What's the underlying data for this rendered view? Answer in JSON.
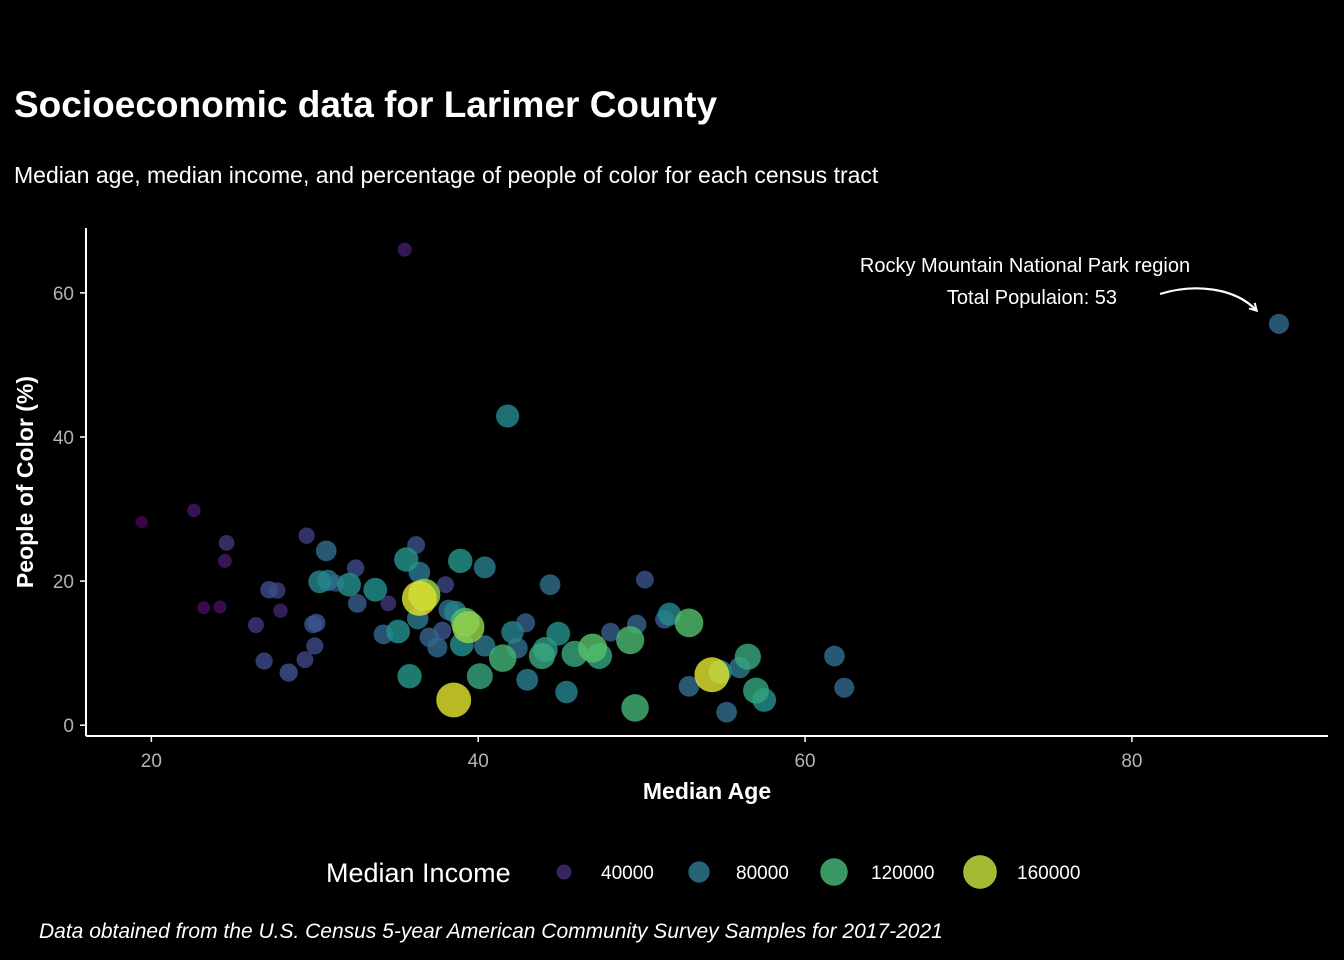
{
  "header": {
    "title": "Socioeconomic data for Larimer County",
    "subtitle": "Median age, median income, and percentage of people of color for each census tract"
  },
  "caption": "Data obtained from the U.S. Census 5-year American Community Survey Samples for 2017-2021",
  "chart_data": {
    "type": "scatter",
    "title": "Socioeconomic data for Larimer County",
    "subtitle": "Median age, median income, and percentage of people of color for each census tract",
    "xlabel": "Median Age",
    "ylabel": "People of Color (%)",
    "xlim": [
      16,
      92
    ],
    "ylim": [
      -1.5,
      69
    ],
    "xticks": [
      20,
      40,
      60,
      80
    ],
    "yticks": [
      0,
      20,
      40,
      60
    ],
    "grid": false,
    "legend": {
      "title": "Median Income",
      "placement": "bottom",
      "entries": [
        {
          "label": "40000",
          "value": 40000
        },
        {
          "label": "80000",
          "value": 80000
        },
        {
          "label": "120000",
          "value": 120000
        },
        {
          "label": "160000",
          "value": 160000
        }
      ]
    },
    "annotation": {
      "lines": [
        "Rocky Mountain National Park region",
        "Total Populaion: 53"
      ],
      "target": {
        "x": 89,
        "y": 55.5
      }
    },
    "points": [
      {
        "x": 19.4,
        "y": 28.2,
        "income": 22000
      },
      {
        "x": 22.6,
        "y": 29.8,
        "income": 30000
      },
      {
        "x": 23.2,
        "y": 16.3,
        "income": 26000
      },
      {
        "x": 24.2,
        "y": 16.4,
        "income": 27000
      },
      {
        "x": 24.5,
        "y": 22.8,
        "income": 33000
      },
      {
        "x": 24.6,
        "y": 25.3,
        "income": 45000
      },
      {
        "x": 26.4,
        "y": 13.9,
        "income": 46000
      },
      {
        "x": 26.9,
        "y": 8.9,
        "income": 54000
      },
      {
        "x": 27.2,
        "y": 18.8,
        "income": 56000
      },
      {
        "x": 27.7,
        "y": 18.7,
        "income": 49000
      },
      {
        "x": 27.9,
        "y": 15.9,
        "income": 36000
      },
      {
        "x": 28.4,
        "y": 7.3,
        "income": 60000
      },
      {
        "x": 29.5,
        "y": 26.3,
        "income": 48000
      },
      {
        "x": 29.4,
        "y": 9.1,
        "income": 52000
      },
      {
        "x": 29.9,
        "y": 14.0,
        "income": 58000
      },
      {
        "x": 30.0,
        "y": 11.0,
        "income": 54000
      },
      {
        "x": 30.1,
        "y": 14.2,
        "income": 60000
      },
      {
        "x": 30.3,
        "y": 19.9,
        "income": 90000
      },
      {
        "x": 30.7,
        "y": 24.2,
        "income": 76000
      },
      {
        "x": 30.8,
        "y": 20.1,
        "income": 80000
      },
      {
        "x": 31.3,
        "y": 19.7,
        "income": 52000
      },
      {
        "x": 32.1,
        "y": 19.5,
        "income": 96000
      },
      {
        "x": 32.5,
        "y": 21.8,
        "income": 55000
      },
      {
        "x": 32.6,
        "y": 16.9,
        "income": 64000
      },
      {
        "x": 33.7,
        "y": 18.8,
        "income": 96000
      },
      {
        "x": 34.2,
        "y": 12.6,
        "income": 70000
      },
      {
        "x": 34.5,
        "y": 16.9,
        "income": 44000
      },
      {
        "x": 35.1,
        "y": 13.0,
        "income": 96000
      },
      {
        "x": 35.5,
        "y": 66.0,
        "income": 33000
      },
      {
        "x": 35.6,
        "y": 23.0,
        "income": 100000
      },
      {
        "x": 35.8,
        "y": 6.8,
        "income": 100000
      },
      {
        "x": 36.2,
        "y": 25.0,
        "income": 58000
      },
      {
        "x": 36.3,
        "y": 14.8,
        "income": 82000
      },
      {
        "x": 36.4,
        "y": 21.2,
        "income": 82000
      },
      {
        "x": 36.4,
        "y": 17.6,
        "income": 168000
      },
      {
        "x": 36.7,
        "y": 18.1,
        "income": 150000
      },
      {
        "x": 37.0,
        "y": 12.2,
        "income": 68000
      },
      {
        "x": 37.5,
        "y": 10.8,
        "income": 72000
      },
      {
        "x": 37.8,
        "y": 13.1,
        "income": 60000
      },
      {
        "x": 38.0,
        "y": 19.5,
        "income": 52000
      },
      {
        "x": 38.2,
        "y": 16.0,
        "income": 76000
      },
      {
        "x": 38.5,
        "y": 3.5,
        "income": 168000
      },
      {
        "x": 38.6,
        "y": 15.7,
        "income": 88000
      },
      {
        "x": 38.9,
        "y": 22.8,
        "income": 100000
      },
      {
        "x": 39.0,
        "y": 11.2,
        "income": 96000
      },
      {
        "x": 39.2,
        "y": 14.3,
        "income": 128000
      },
      {
        "x": 39.4,
        "y": 13.6,
        "income": 150000
      },
      {
        "x": 40.1,
        "y": 6.8,
        "income": 110000
      },
      {
        "x": 40.4,
        "y": 11.0,
        "income": 80000
      },
      {
        "x": 40.4,
        "y": 21.9,
        "income": 84000
      },
      {
        "x": 41.5,
        "y": 9.3,
        "income": 120000
      },
      {
        "x": 41.8,
        "y": 42.9,
        "income": 92000
      },
      {
        "x": 42.1,
        "y": 12.9,
        "income": 88000
      },
      {
        "x": 42.4,
        "y": 10.7,
        "income": 76000
      },
      {
        "x": 42.9,
        "y": 14.2,
        "income": 66000
      },
      {
        "x": 43.0,
        "y": 6.3,
        "income": 84000
      },
      {
        "x": 43.9,
        "y": 9.6,
        "income": 112000
      },
      {
        "x": 44.1,
        "y": 10.5,
        "income": 104000
      },
      {
        "x": 44.4,
        "y": 19.5,
        "income": 76000
      },
      {
        "x": 44.9,
        "y": 12.7,
        "income": 96000
      },
      {
        "x": 45.4,
        "y": 4.6,
        "income": 88000
      },
      {
        "x": 45.9,
        "y": 9.9,
        "income": 112000
      },
      {
        "x": 47.0,
        "y": 10.7,
        "income": 130000
      },
      {
        "x": 47.4,
        "y": 9.6,
        "income": 110000
      },
      {
        "x": 48.1,
        "y": 12.9,
        "income": 64000
      },
      {
        "x": 49.3,
        "y": 11.8,
        "income": 124000
      },
      {
        "x": 49.6,
        "y": 2.4,
        "income": 120000
      },
      {
        "x": 49.7,
        "y": 14.0,
        "income": 68000
      },
      {
        "x": 50.2,
        "y": 20.2,
        "income": 58000
      },
      {
        "x": 51.4,
        "y": 14.7,
        "income": 64000
      },
      {
        "x": 51.7,
        "y": 15.4,
        "income": 92000
      },
      {
        "x": 52.9,
        "y": 14.2,
        "income": 128000
      },
      {
        "x": 52.9,
        "y": 5.4,
        "income": 76000
      },
      {
        "x": 54.3,
        "y": 7.0,
        "income": 168000
      },
      {
        "x": 54.8,
        "y": 7.4,
        "income": 96000
      },
      {
        "x": 55.2,
        "y": 1.8,
        "income": 76000
      },
      {
        "x": 56.0,
        "y": 8.0,
        "income": 80000
      },
      {
        "x": 56.5,
        "y": 9.5,
        "income": 112000
      },
      {
        "x": 57.0,
        "y": 4.8,
        "income": 110000
      },
      {
        "x": 57.5,
        "y": 3.5,
        "income": 96000
      },
      {
        "x": 61.8,
        "y": 9.6,
        "income": 76000
      },
      {
        "x": 62.4,
        "y": 5.2,
        "income": 72000
      },
      {
        "x": 89.0,
        "y": 55.7,
        "income": 72000
      }
    ]
  }
}
